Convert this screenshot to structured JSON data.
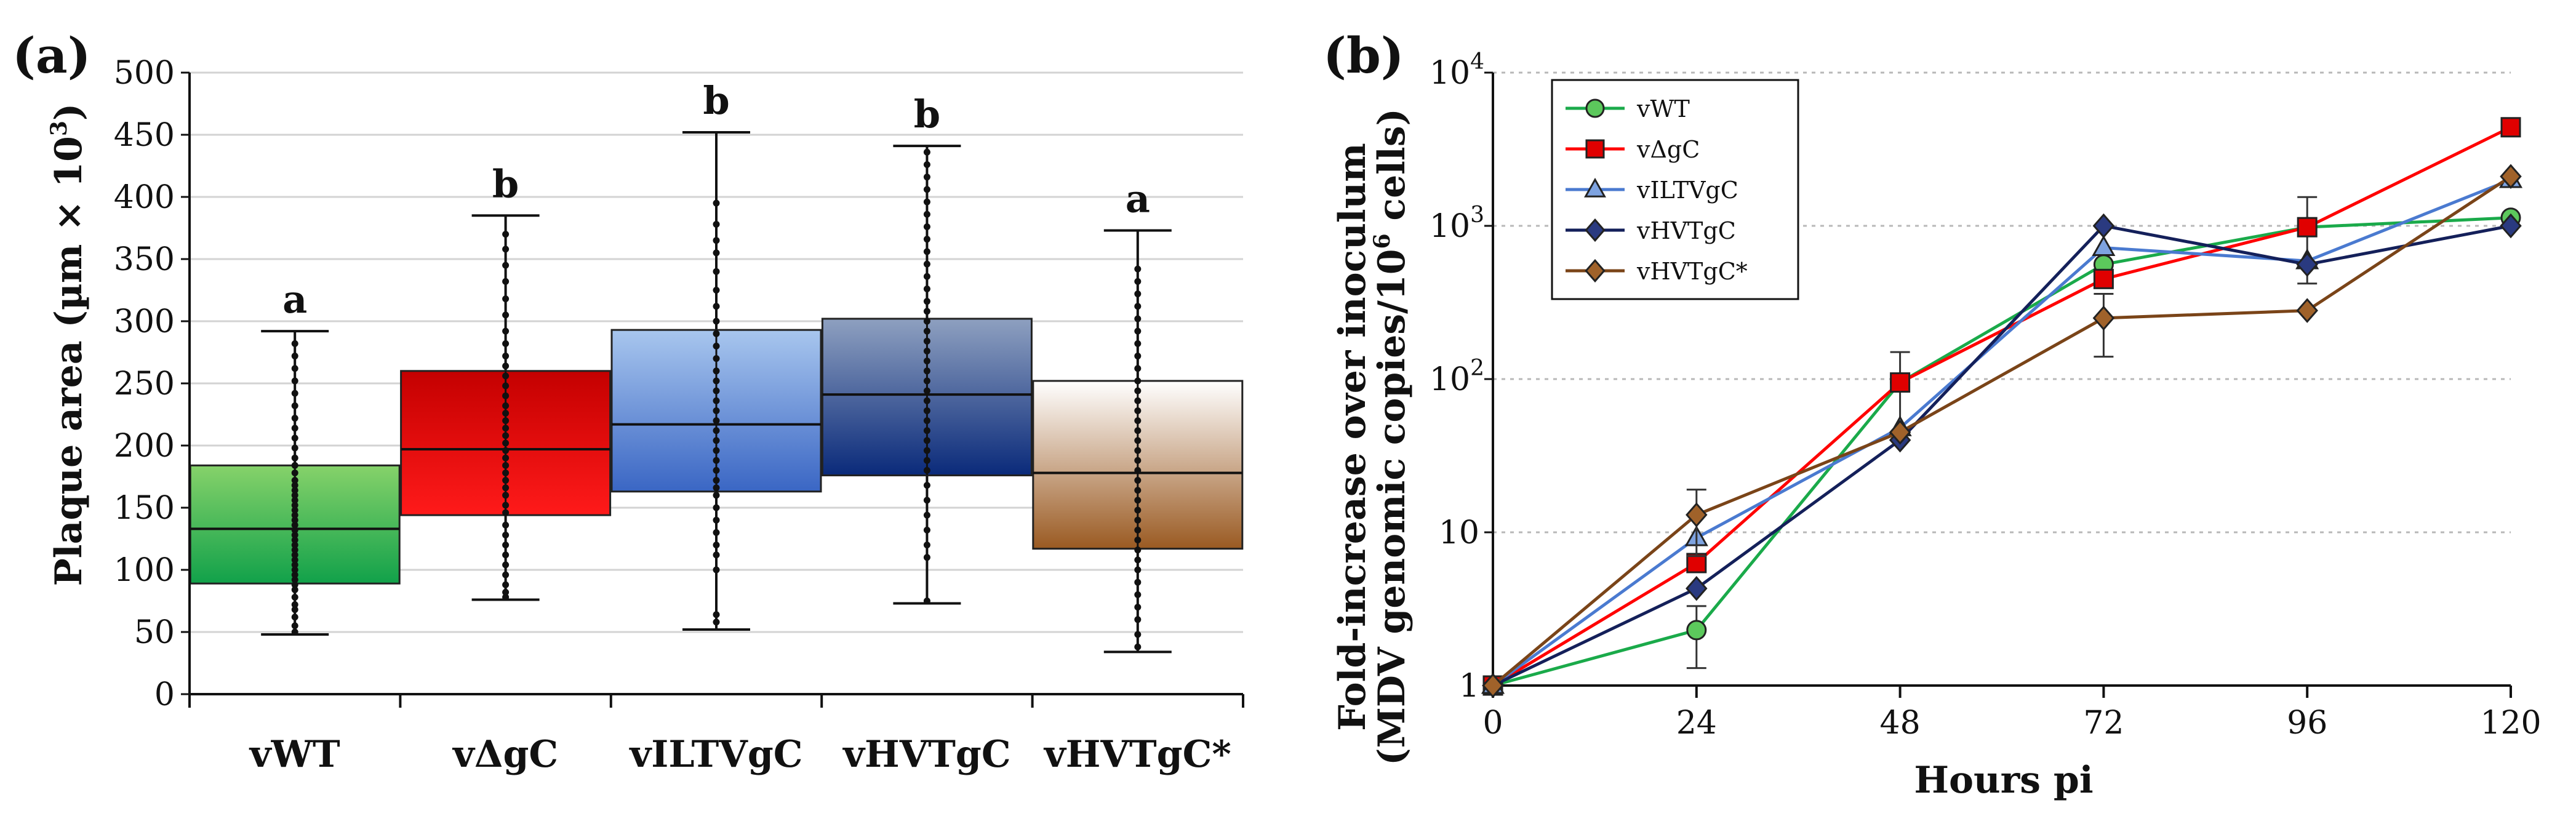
{
  "chart_data": [
    {
      "type": "box",
      "panel": "(a)",
      "ylabel": "Plaque area (µm × 10",
      "ylabel_sup": "3",
      "ylabel_close": ")",
      "ylim": [
        0,
        500
      ],
      "yticks": [
        0,
        50,
        100,
        150,
        200,
        250,
        300,
        350,
        400,
        450,
        500
      ],
      "grid": true,
      "categories": [
        "vWT",
        "vΔgC",
        "vILTVgC",
        "vHVTgC",
        "vHVTgC*"
      ],
      "boxes": [
        {
          "name": "vWT",
          "min": 48,
          "q1": 89,
          "median": 133,
          "q3": 184,
          "max": 292,
          "significance": "a",
          "color_top": "#86d26a",
          "color_bottom": "#11a14a",
          "points": [
            50,
            55,
            62,
            68,
            72,
            78,
            84,
            88,
            92,
            96,
            100,
            104,
            108,
            112,
            116,
            120,
            124,
            128,
            132,
            136,
            140,
            144,
            148,
            152,
            156,
            160,
            164,
            168,
            172,
            178,
            184,
            190,
            198,
            206,
            214,
            222,
            232,
            242,
            252,
            262,
            272,
            282
          ]
        },
        {
          "name": "vΔgC",
          "min": 76,
          "q1": 144,
          "median": 197,
          "q3": 260,
          "max": 385,
          "significance": "b",
          "color_top": "#c40000",
          "color_bottom": "#ff1a1a",
          "points": [
            78,
            82,
            88,
            96,
            104,
            112,
            120,
            128,
            136,
            146,
            152,
            160,
            166,
            172,
            178,
            184,
            190,
            196,
            202,
            208,
            214,
            220,
            226,
            232,
            240,
            248,
            256,
            264,
            272,
            282,
            292,
            305,
            318,
            332,
            345,
            358,
            370
          ]
        },
        {
          "name": "vILTVgC",
          "min": 52,
          "q1": 163,
          "median": 217,
          "q3": 293,
          "max": 452,
          "significance": "b",
          "color_top": "#a8c6ee",
          "color_bottom": "#3a66c4",
          "points": [
            58,
            64,
            100,
            112,
            120,
            130,
            140,
            150,
            160,
            166,
            172,
            180,
            188,
            196,
            204,
            212,
            220,
            228,
            236,
            244,
            252,
            260,
            270,
            280,
            290,
            300,
            312,
            325,
            340,
            355,
            365,
            378,
            395
          ]
        },
        {
          "name": "vHVTgC",
          "min": 73,
          "q1": 176,
          "median": 241,
          "q3": 302,
          "max": 441,
          "significance": "b",
          "color_top": "#8ea0c0",
          "color_bottom": "#0a2a7a",
          "points": [
            75,
            110,
            120,
            132,
            144,
            156,
            168,
            180,
            188,
            196,
            204,
            212,
            220,
            228,
            236,
            244,
            252,
            260,
            268,
            276,
            284,
            292,
            300,
            308,
            316,
            326,
            336,
            346,
            356,
            366,
            376,
            386,
            396,
            406,
            416,
            426,
            436
          ]
        },
        {
          "name": "vHVTgC*",
          "min": 34,
          "q1": 117,
          "median": 178,
          "q3": 252,
          "max": 373,
          "significance": "a",
          "color_top": "#ffffff",
          "color_bottom": "#9a5a22",
          "points": [
            38,
            48,
            60,
            70,
            80,
            90,
            100,
            108,
            116,
            124,
            132,
            140,
            148,
            156,
            164,
            172,
            180,
            188,
            196,
            204,
            212,
            220,
            228,
            236,
            244,
            252,
            262,
            272,
            282,
            292,
            302,
            312,
            322,
            332,
            342
          ]
        }
      ]
    },
    {
      "type": "line",
      "panel": "(b)",
      "xlabel": "Hours pi",
      "ylabel_line1": "Fold-increase over inoculum",
      "ylabel_line2_prefix": "(MDV genomic copies/10",
      "ylabel_line2_sup": "6",
      "ylabel_line2_suffix": " cells)",
      "yscale": "log",
      "ylim": [
        1,
        10000
      ],
      "ytick_labels": [
        {
          "value": 1,
          "base": "1",
          "sup": ""
        },
        {
          "value": 10,
          "base": "10",
          "sup": ""
        },
        {
          "value": 100,
          "base": "10",
          "sup": "2"
        },
        {
          "value": 1000,
          "base": "10",
          "sup": "3"
        },
        {
          "value": 10000,
          "base": "10",
          "sup": "4"
        }
      ],
      "x": [
        0,
        24,
        48,
        72,
        96,
        120
      ],
      "xtick_labels": [
        "0",
        "24",
        "48",
        "72",
        "96",
        "120"
      ],
      "grid": true,
      "legend_position": "top-left",
      "series": [
        {
          "name": "vWT",
          "color": "#1aaa4a",
          "marker": "circle",
          "marker_fill": "#5cc85c",
          "values": [
            1,
            2.3,
            95,
            560,
            980,
            1130
          ],
          "err": [
            0,
            1.0,
            55,
            0,
            0,
            0
          ]
        },
        {
          "name": "vΔgC",
          "color": "#ff0000",
          "marker": "square",
          "marker_fill": "#e00000",
          "values": [
            1,
            6.3,
            95,
            450,
            980,
            4400
          ],
          "err": [
            0,
            0,
            0,
            0,
            560,
            0
          ]
        },
        {
          "name": "vILTVgC",
          "color": "#4a7ad0",
          "marker": "triangle",
          "marker_fill": "#7ea3e0",
          "values": [
            1,
            9.2,
            48,
            720,
            590,
            2000
          ],
          "err": [
            0,
            0,
            0,
            0,
            0,
            0
          ]
        },
        {
          "name": "vHVTgC",
          "color": "#14205a",
          "marker": "diamond",
          "marker_fill": "#2a3a80",
          "values": [
            1,
            4.3,
            40,
            1000,
            560,
            1000
          ],
          "err": [
            0,
            0,
            0,
            0,
            0,
            0
          ]
        },
        {
          "name": "vHVTgC*",
          "color": "#7a4418",
          "marker": "diamond",
          "marker_fill": "#a0622a",
          "values": [
            1,
            13,
            45,
            250,
            280,
            2100
          ],
          "err": [
            0,
            6,
            0,
            110,
            0,
            0
          ]
        }
      ]
    }
  ]
}
